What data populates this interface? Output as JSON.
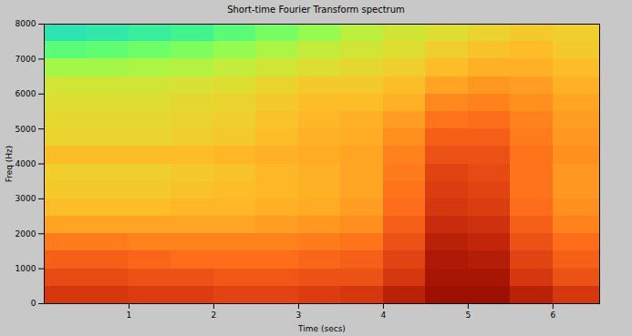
{
  "chart_data": {
    "type": "heatmap",
    "title": "Short-time Fourier Transform spectrum",
    "x_label": "Time (secs)",
    "y_label": "Freq (Hz)",
    "xlim": [
      0,
      6.55
    ],
    "ylim": [
      0,
      8000
    ],
    "xticks": [
      1,
      2,
      3,
      4,
      5,
      6
    ],
    "yticks": [
      0,
      1000,
      2000,
      3000,
      4000,
      5000,
      6000,
      7000,
      8000
    ],
    "color": "turbo",
    "time_bins": [
      0,
      0.5,
      1,
      1.5,
      2,
      2.5,
      3,
      3.5,
      4,
      4.5,
      5,
      5.5,
      6,
      6.55
    ],
    "freq_bins": [
      0,
      500,
      1000,
      1500,
      2000,
      2500,
      3000,
      3500,
      4000,
      4500,
      5000,
      5500,
      6000,
      6500,
      7000,
      7500,
      8000
    ],
    "zlim": [
      0,
      1
    ],
    "cells": [
      [
        0.86,
        0.86,
        0.85,
        0.85,
        0.84,
        0.84,
        0.85,
        0.86,
        0.9,
        0.95,
        0.95,
        0.9,
        0.86
      ],
      [
        0.83,
        0.83,
        0.82,
        0.82,
        0.81,
        0.81,
        0.82,
        0.82,
        0.86,
        0.93,
        0.93,
        0.86,
        0.82
      ],
      [
        0.8,
        0.8,
        0.79,
        0.78,
        0.78,
        0.78,
        0.79,
        0.8,
        0.84,
        0.92,
        0.91,
        0.84,
        0.8
      ],
      [
        0.76,
        0.76,
        0.75,
        0.75,
        0.75,
        0.75,
        0.76,
        0.77,
        0.82,
        0.9,
        0.89,
        0.82,
        0.78
      ],
      [
        0.7,
        0.7,
        0.7,
        0.7,
        0.7,
        0.71,
        0.72,
        0.73,
        0.8,
        0.88,
        0.87,
        0.8,
        0.75
      ],
      [
        0.66,
        0.66,
        0.66,
        0.67,
        0.67,
        0.68,
        0.69,
        0.71,
        0.78,
        0.86,
        0.85,
        0.78,
        0.73
      ],
      [
        0.64,
        0.64,
        0.64,
        0.65,
        0.66,
        0.67,
        0.68,
        0.7,
        0.77,
        0.85,
        0.84,
        0.77,
        0.72
      ],
      [
        0.63,
        0.63,
        0.63,
        0.64,
        0.65,
        0.67,
        0.68,
        0.7,
        0.76,
        0.84,
        0.83,
        0.77,
        0.72
      ],
      [
        0.66,
        0.66,
        0.66,
        0.66,
        0.67,
        0.68,
        0.69,
        0.7,
        0.75,
        0.82,
        0.82,
        0.77,
        0.73
      ],
      [
        0.62,
        0.62,
        0.62,
        0.63,
        0.64,
        0.66,
        0.68,
        0.69,
        0.73,
        0.8,
        0.8,
        0.76,
        0.72
      ],
      [
        0.61,
        0.61,
        0.61,
        0.62,
        0.63,
        0.65,
        0.67,
        0.68,
        0.71,
        0.77,
        0.78,
        0.75,
        0.71
      ],
      [
        0.6,
        0.6,
        0.6,
        0.61,
        0.62,
        0.64,
        0.66,
        0.66,
        0.68,
        0.74,
        0.75,
        0.73,
        0.7
      ],
      [
        0.58,
        0.58,
        0.58,
        0.59,
        0.6,
        0.62,
        0.64,
        0.64,
        0.66,
        0.7,
        0.72,
        0.71,
        0.68
      ],
      [
        0.52,
        0.52,
        0.53,
        0.54,
        0.56,
        0.58,
        0.6,
        0.61,
        0.63,
        0.66,
        0.68,
        0.68,
        0.66
      ],
      [
        0.42,
        0.43,
        0.45,
        0.47,
        0.5,
        0.53,
        0.56,
        0.58,
        0.6,
        0.63,
        0.65,
        0.66,
        0.64
      ],
      [
        0.33,
        0.34,
        0.36,
        0.38,
        0.42,
        0.46,
        0.5,
        0.55,
        0.58,
        0.6,
        0.62,
        0.64,
        0.63
      ]
    ]
  }
}
